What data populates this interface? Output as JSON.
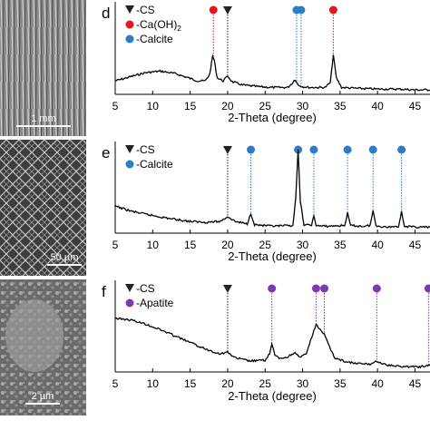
{
  "sem_panels": [
    {
      "scale_label": "1 mm"
    },
    {
      "scale_label": "50 µm"
    },
    {
      "scale_label": "2 µm"
    }
  ],
  "colors": {
    "cs": "#222222",
    "caoh2": "#e8141c",
    "calcite": "#2e7dc4",
    "apatite": "#7b3bb0",
    "line": "#000000"
  },
  "chart_data": [
    {
      "type": "line",
      "panel_label": "d",
      "xlabel": "2-Theta (degree)",
      "ylabel": "",
      "xlim": [
        5,
        47
      ],
      "xticks": [
        5,
        10,
        15,
        20,
        25,
        30,
        35,
        40,
        45
      ],
      "legend": [
        {
          "marker": "triangle",
          "prefix": "-",
          "label": "CS",
          "sub": "",
          "color_key": "cs"
        },
        {
          "marker": "circle",
          "prefix": "-",
          "label": "Ca(OH)",
          "sub": "2",
          "color_key": "caoh2"
        },
        {
          "marker": "circle",
          "prefix": "-",
          "label": "Calcite",
          "sub": "",
          "color_key": "calcite"
        }
      ],
      "peak_markers": [
        {
          "x": 18.1,
          "marker": "circle",
          "color_key": "caoh2"
        },
        {
          "x": 20.0,
          "marker": "triangle",
          "color_key": "cs"
        },
        {
          "x": 29.2,
          "marker": "circle",
          "color_key": "calcite"
        },
        {
          "x": 29.8,
          "marker": "circle",
          "color_key": "calcite"
        },
        {
          "x": 34.1,
          "marker": "circle",
          "color_key": "caoh2"
        }
      ],
      "x": [
        5,
        7,
        9,
        11,
        13,
        15,
        16,
        17,
        17.6,
        18.0,
        18.2,
        18.6,
        19.4,
        20.0,
        20.6,
        22,
        24,
        26,
        28,
        28.6,
        29.0,
        29.4,
        30,
        31,
        33,
        33.7,
        34.1,
        34.5,
        35.2,
        37,
        40,
        43,
        45,
        47
      ],
      "y": [
        0.12,
        0.17,
        0.22,
        0.24,
        0.21,
        0.15,
        0.12,
        0.12,
        0.2,
        0.42,
        0.38,
        0.16,
        0.12,
        0.18,
        0.11,
        0.07,
        0.05,
        0.04,
        0.04,
        0.09,
        0.14,
        0.07,
        0.05,
        0.04,
        0.04,
        0.1,
        0.44,
        0.16,
        0.04,
        0.03,
        0.02,
        0.02,
        0.01,
        0.01
      ]
    },
    {
      "type": "line",
      "panel_label": "e",
      "xlabel": "2-Theta (degree)",
      "ylabel": "",
      "xlim": [
        5,
        47
      ],
      "xticks": [
        5,
        10,
        15,
        20,
        25,
        30,
        35,
        40,
        45
      ],
      "legend": [
        {
          "marker": "triangle",
          "prefix": "-",
          "label": "CS",
          "sub": "",
          "color_key": "cs"
        },
        {
          "marker": "circle",
          "prefix": "-",
          "label": "Calcite",
          "sub": "",
          "color_key": "calcite"
        }
      ],
      "peak_markers": [
        {
          "x": 20.0,
          "marker": "triangle",
          "color_key": "cs"
        },
        {
          "x": 23.1,
          "marker": "circle",
          "color_key": "calcite"
        },
        {
          "x": 29.4,
          "marker": "circle",
          "color_key": "calcite"
        },
        {
          "x": 31.5,
          "marker": "circle",
          "color_key": "calcite"
        },
        {
          "x": 36.0,
          "marker": "circle",
          "color_key": "calcite"
        },
        {
          "x": 39.4,
          "marker": "circle",
          "color_key": "calcite"
        },
        {
          "x": 43.2,
          "marker": "circle",
          "color_key": "calcite"
        }
      ],
      "x": [
        5,
        7,
        9,
        12,
        15,
        17,
        19,
        20,
        21,
        22.6,
        23.1,
        23.6,
        26,
        28.7,
        29.1,
        29.4,
        29.7,
        30.2,
        31.2,
        31.5,
        31.8,
        33,
        35.6,
        36.0,
        36.4,
        38,
        39.0,
        39.4,
        39.8,
        41,
        42.8,
        43.2,
        43.6,
        45,
        47
      ],
      "y": [
        0.29,
        0.23,
        0.19,
        0.14,
        0.1,
        0.09,
        0.1,
        0.16,
        0.1,
        0.07,
        0.2,
        0.06,
        0.04,
        0.05,
        0.4,
        0.98,
        0.35,
        0.05,
        0.06,
        0.16,
        0.05,
        0.04,
        0.05,
        0.2,
        0.05,
        0.04,
        0.05,
        0.23,
        0.05,
        0.03,
        0.04,
        0.22,
        0.04,
        0.03,
        0.03
      ]
    },
    {
      "type": "line",
      "panel_label": "f",
      "xlabel": "2-Theta (degree)",
      "ylabel": "",
      "xlim": [
        5,
        47
      ],
      "xticks": [
        5,
        10,
        15,
        20,
        25,
        30,
        35,
        40,
        45
      ],
      "legend": [
        {
          "marker": "triangle",
          "prefix": "-",
          "label": "CS",
          "sub": "",
          "color_key": "cs"
        },
        {
          "marker": "circle",
          "prefix": "-",
          "label": "Apatite",
          "sub": "",
          "color_key": "apatite"
        }
      ],
      "peak_markers": [
        {
          "x": 20.0,
          "marker": "triangle",
          "color_key": "cs"
        },
        {
          "x": 25.9,
          "marker": "circle",
          "color_key": "apatite"
        },
        {
          "x": 31.8,
          "marker": "circle",
          "color_key": "apatite"
        },
        {
          "x": 32.9,
          "marker": "circle",
          "color_key": "apatite"
        },
        {
          "x": 39.9,
          "marker": "circle",
          "color_key": "apatite"
        },
        {
          "x": 46.8,
          "marker": "circle",
          "color_key": "apatite"
        }
      ],
      "x": [
        5,
        7,
        9,
        11,
        13,
        15,
        17,
        19,
        20,
        21,
        23,
        25,
        25.6,
        25.9,
        26.3,
        27,
        28,
        29.0,
        29.6,
        30.5,
        31.2,
        31.8,
        32.2,
        32.9,
        33.5,
        34.3,
        35.5,
        37,
        39,
        39.9,
        40.8,
        42,
        44,
        46,
        47
      ],
      "y": [
        0.62,
        0.6,
        0.55,
        0.48,
        0.4,
        0.32,
        0.24,
        0.18,
        0.2,
        0.13,
        0.09,
        0.1,
        0.18,
        0.3,
        0.16,
        0.12,
        0.14,
        0.2,
        0.13,
        0.18,
        0.38,
        0.54,
        0.5,
        0.42,
        0.28,
        0.13,
        0.09,
        0.06,
        0.05,
        0.09,
        0.05,
        0.03,
        0.02,
        0.02,
        0.04
      ]
    }
  ]
}
